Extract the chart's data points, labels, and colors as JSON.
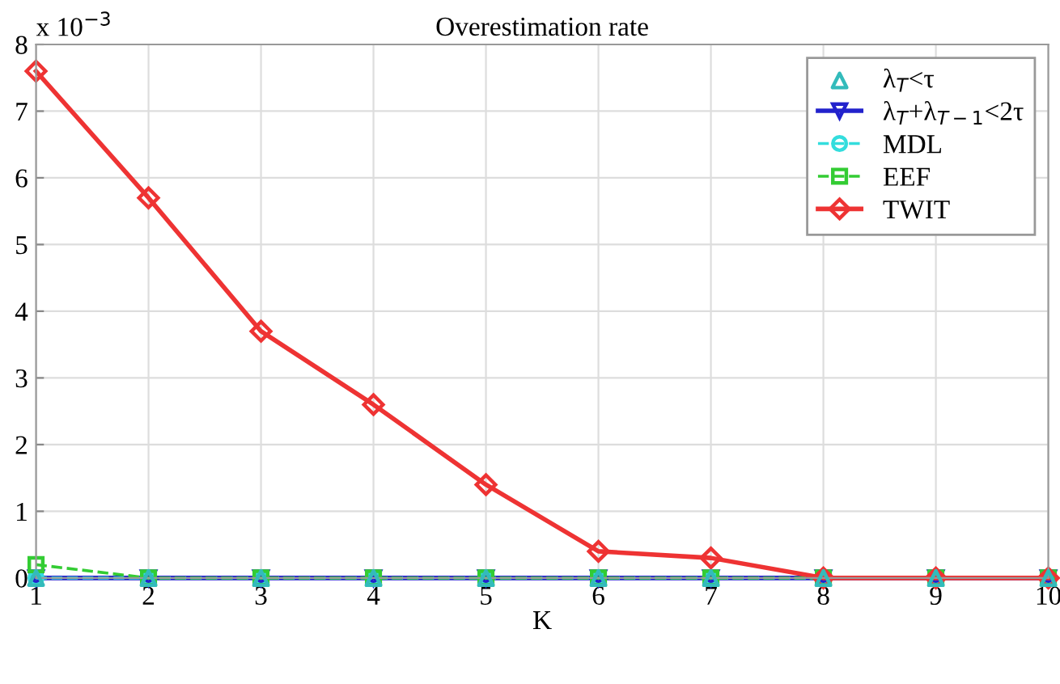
{
  "chart_data": {
    "type": "line",
    "title": "Overestimation rate",
    "xlabel": "K",
    "x": [
      1,
      2,
      3,
      4,
      5,
      6,
      7,
      8,
      9,
      10
    ],
    "series": [
      {
        "name": "λ$_{T}$<τ",
        "type": "scatter",
        "color": "#33bbbb",
        "marker": "triangle",
        "values": [
          0,
          0,
          0,
          0,
          0,
          0,
          0,
          0,
          0,
          0
        ]
      },
      {
        "name": "λ$_{T}$+λ$_{T−1}$<2τ",
        "color": "#2222cc",
        "marker": "triangle_down",
        "line_style": "solid",
        "values": [
          0,
          0,
          0,
          0,
          0,
          0,
          0,
          0,
          0,
          0
        ]
      },
      {
        "name": "MDL",
        "color": "#33dddd",
        "marker": "circle",
        "line_style": "dashed",
        "values": [
          0,
          0,
          0,
          0,
          0,
          0,
          0,
          0,
          0,
          0
        ]
      },
      {
        "name": "EEF",
        "color": "#33cc33",
        "marker": "square",
        "line_style": "dashed",
        "values": [
          0.2,
          0,
          0,
          0,
          0,
          0,
          0,
          0,
          0,
          0
        ]
      },
      {
        "name": "TWIT",
        "color": "#ee3333",
        "marker": "diamond",
        "line_style": "solid",
        "values": [
          7.6,
          5.7,
          3.7,
          2.6,
          1.4,
          0.4,
          0.3,
          0,
          0,
          0
        ]
      }
    ],
    "xlim": [
      1,
      10
    ],
    "xticks": [
      1,
      2,
      3,
      4,
      5,
      6,
      7,
      8,
      9,
      10
    ],
    "ylim": [
      0,
      8
    ],
    "yticks": [
      0,
      1,
      2,
      3,
      4,
      5,
      6,
      7,
      8
    ],
    "annotations": [
      "x 10$^{−3}$"
    ],
    "grid": true,
    "legend": "top right"
  }
}
